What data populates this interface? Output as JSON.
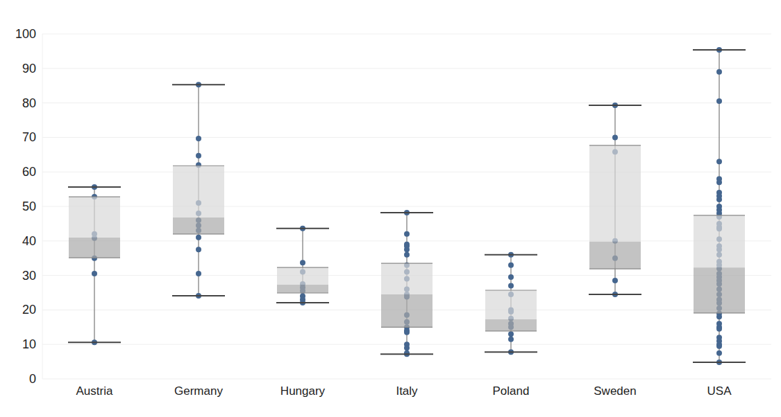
{
  "chart_data": {
    "type": "box",
    "categories": [
      "Austria",
      "Germany",
      "Hungary",
      "Italy",
      "Poland",
      "Sweden",
      "USA"
    ],
    "min": [
      10.6,
      24.1,
      22.1,
      7.2,
      7.8,
      24.5,
      4.8
    ],
    "q1": [
      35.1,
      42.0,
      24.9,
      15.0,
      13.9,
      31.9,
      19.1
    ],
    "median": [
      41.0,
      46.8,
      27.3,
      24.5,
      17.3,
      39.8,
      32.3
    ],
    "q3": [
      52.8,
      61.8,
      32.3,
      33.5,
      25.7,
      67.7,
      47.4
    ],
    "max": [
      55.6,
      85.3,
      43.6,
      48.2,
      36.0,
      79.3,
      95.4
    ],
    "points": [
      [
        55.6,
        52.8,
        42.0,
        40.8,
        35.0,
        30.5,
        10.6
      ],
      [
        85.3,
        69.7,
        64.7,
        62.0,
        51.0,
        48.0,
        46.0,
        44.5,
        43.0,
        41.0,
        37.5,
        30.5,
        24.1
      ],
      [
        43.6,
        33.7,
        31.0,
        27.5,
        26.5,
        25.5,
        24.0,
        23.0,
        22.1
      ],
      [
        48.2,
        42.0,
        39.0,
        38.5,
        37.5,
        36.0,
        33.0,
        31.0,
        29.0,
        26.0,
        24.5,
        23.8,
        18.5,
        16.5,
        15.0,
        14.0,
        13.5,
        10.0,
        9.0,
        7.5,
        7.2
      ],
      [
        36.0,
        33.0,
        29.5,
        27.0,
        24.5,
        20.0,
        19.5,
        17.5,
        16.0,
        15.0,
        13.0,
        11.5,
        7.8
      ],
      [
        79.3,
        70.0,
        65.8,
        40.0,
        35.0,
        28.5,
        24.5
      ],
      [
        95.4,
        89.0,
        80.5,
        63.0,
        58.0,
        57.0,
        54.0,
        53.0,
        52.0,
        50.0,
        49.0,
        48.0,
        47.0,
        45.0,
        44.0,
        43.5,
        40.5,
        38.5,
        37.5,
        36.0,
        34.0,
        33.0,
        32.0,
        30.5,
        29.5,
        28.5,
        27.5,
        26.0,
        24.5,
        23.0,
        22.0,
        20.5,
        19.0,
        18.0,
        16.0,
        15.0,
        14.5,
        12.0,
        11.0,
        10.0,
        9.5,
        7.5,
        4.8
      ]
    ],
    "color": "#45668f",
    "ylim": [
      0,
      100
    ],
    "yticks": [
      0,
      10,
      20,
      30,
      40,
      50,
      60,
      70,
      80,
      90,
      100
    ],
    "grid": true
  }
}
